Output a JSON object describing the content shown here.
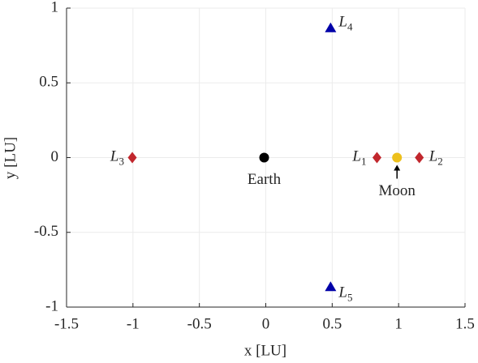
{
  "chart_data": {
    "type": "scatter",
    "xlabel": "x [LU]",
    "ylabel": "y [LU]",
    "xlim": [
      -1.5,
      1.5
    ],
    "ylim": [
      -1,
      1
    ],
    "xticks": [
      -1.5,
      -1,
      -0.5,
      0,
      0.5,
      1,
      1.5
    ],
    "yticks": [
      -1,
      -0.5,
      0,
      0.5,
      1
    ],
    "grid": true,
    "series": [
      {
        "name": "Earth",
        "color": "#000000",
        "marker": "circle",
        "x": [
          -0.0122
        ],
        "y": [
          0
        ]
      },
      {
        "name": "Moon",
        "color": "#edc01c",
        "marker": "circle",
        "x": [
          0.988
        ],
        "y": [
          0
        ]
      },
      {
        "name": "L1",
        "color": "#c1272d",
        "marker": "diamond",
        "x": [
          0.837
        ],
        "y": [
          0
        ]
      },
      {
        "name": "L2",
        "color": "#c1272d",
        "marker": "diamond",
        "x": [
          1.156
        ],
        "y": [
          0
        ]
      },
      {
        "name": "L3",
        "color": "#c1272d",
        "marker": "diamond",
        "x": [
          -1.005
        ],
        "y": [
          0
        ]
      },
      {
        "name": "L4",
        "color": "#0000a8",
        "marker": "triangle",
        "x": [
          0.488
        ],
        "y": [
          0.866
        ]
      },
      {
        "name": "L5",
        "color": "#0000a8",
        "marker": "triangle",
        "x": [
          0.488
        ],
        "y": [
          -0.866
        ]
      }
    ]
  }
}
